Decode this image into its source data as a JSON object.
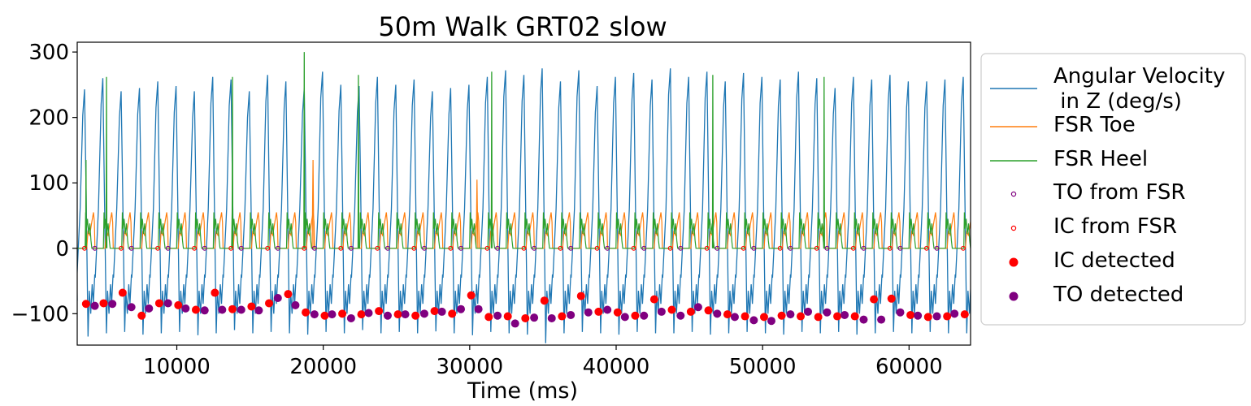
{
  "chart_data": {
    "type": "line",
    "title": "50m Walk GRT02 slow",
    "xlabel": "Time (ms)",
    "ylabel": "",
    "xlim": [
      3200,
      64200
    ],
    "ylim": [
      -148,
      315
    ],
    "x_ticks": [
      10000,
      20000,
      30000,
      40000,
      50000,
      60000
    ],
    "x_tick_labels": [
      "10000",
      "20000",
      "30000",
      "40000",
      "50000",
      "60000"
    ],
    "y_ticks": [
      -100,
      0,
      100,
      200,
      300
    ],
    "y_tick_labels": [
      "−100",
      "0",
      "100",
      "200",
      "300"
    ],
    "grid": false,
    "legend_position": "outside-right",
    "legend": [
      {
        "label": "Angular Velocity\n in Z (deg/s)",
        "marker": "line",
        "color": "#1f77b4"
      },
      {
        "label": "FSR Toe",
        "marker": "line",
        "color": "#ff7f0e"
      },
      {
        "label": "FSR Heel",
        "marker": "line",
        "color": "#2ca02c"
      },
      {
        "label": "TO from FSR",
        "marker": "open-circle",
        "color": "#800080"
      },
      {
        "label": "IC from FSR",
        "marker": "open-circle",
        "color": "#ff0000"
      },
      {
        "label": "IC detected",
        "marker": "filled-circle",
        "color": "#ff0000"
      },
      {
        "label": "TO detected",
        "marker": "filled-circle",
        "color": "#800080"
      }
    ],
    "series": [
      {
        "name": "Angular Velocity\n in Z (deg/s)",
        "color": "#1f77b4",
        "kind": "periodic-gait-signal",
        "step_period_ms": 1250,
        "first_peak_ms": 3700,
        "peak_values": [
          243,
          260,
          240,
          245,
          255,
          248,
          240,
          262,
          258,
          240,
          265,
          255,
          245,
          270,
          250,
          248,
          262,
          250,
          258,
          240,
          245,
          250,
          262,
          272,
          265,
          275,
          255,
          272,
          248,
          262,
          268,
          258,
          275,
          262,
          270,
          255,
          268,
          262,
          258,
          270,
          260,
          245,
          262,
          258,
          265,
          255,
          255,
          258,
          262
        ],
        "trough_values": [
          -135,
          -130,
          -128,
          -132,
          -130,
          -128,
          -133,
          -130,
          -125,
          -130,
          -128,
          -130,
          -132,
          -128,
          -130,
          -125,
          -130,
          -128,
          -130,
          -127,
          -130,
          -133,
          -128,
          -130,
          -132,
          -145,
          -130,
          -128,
          -130,
          -132,
          -128,
          -130,
          -130,
          -128,
          -132,
          -130,
          -128,
          -130,
          -132,
          -128,
          -130,
          -128,
          -132,
          -130,
          -128,
          -130,
          -128,
          -130,
          -130
        ]
      },
      {
        "name": "FSR Toe",
        "color": "#ff7f0e",
        "kind": "periodic-pressure-signal",
        "peak_value": 55,
        "high_spikes": [
          {
            "x": 19300,
            "y": 135
          },
          {
            "x": 30500,
            "y": 105
          }
        ]
      },
      {
        "name": "FSR Heel",
        "color": "#2ca02c",
        "kind": "periodic-pressure-signal",
        "peak_value": 55,
        "high_spikes": [
          {
            "x": 3800,
            "y": 135
          },
          {
            "x": 5200,
            "y": 262
          },
          {
            "x": 13800,
            "y": 262
          },
          {
            "x": 18700,
            "y": 300
          },
          {
            "x": 22400,
            "y": 265
          },
          {
            "x": 31500,
            "y": 270
          },
          {
            "x": 46600,
            "y": 265
          },
          {
            "x": 54200,
            "y": 262
          }
        ]
      }
    ],
    "points": {
      "TO from FSR": {
        "color": "#800080",
        "y": 0,
        "x_start": 4400,
        "x_step": 2500,
        "count": 24
      },
      "IC from FSR": {
        "color": "#ff0000",
        "y": 0,
        "x_start": 3700,
        "x_step": 2500,
        "count": 25
      },
      "IC detected": {
        "color": "#ff0000",
        "x": [
          3800,
          5000,
          6300,
          7600,
          8800,
          10100,
          11300,
          12600,
          13800,
          15100,
          16300,
          17600,
          18800,
          20100,
          21300,
          22600,
          23800,
          25100,
          26300,
          27600,
          28800,
          30100,
          31300,
          32600,
          33800,
          35100,
          36300,
          37600,
          38800,
          40100,
          41300,
          42600,
          43800,
          45100,
          46300,
          47600,
          48800,
          50100,
          51300,
          52600,
          53800,
          55100,
          56300,
          57600,
          58800,
          60100,
          61300,
          62600,
          63800
        ],
        "y": [
          -85,
          -84,
          -68,
          -103,
          -84,
          -87,
          -94,
          -68,
          -93,
          -89,
          -84,
          -70,
          -98,
          -103,
          -100,
          -101,
          -96,
          -101,
          -103,
          -96,
          -100,
          -72,
          -105,
          -104,
          -107,
          -80,
          -104,
          -73,
          -97,
          -98,
          -103,
          -78,
          -94,
          -97,
          -95,
          -101,
          -104,
          -105,
          -103,
          -104,
          -105,
          -104,
          -104,
          -78,
          -77,
          -102,
          -105,
          -104,
          -101
        ]
      },
      "TO detected": {
        "color": "#800080",
        "x": [
          4400,
          5600,
          6900,
          8100,
          9400,
          10600,
          11900,
          13100,
          14400,
          15600,
          16900,
          18100,
          19400,
          20600,
          21900,
          23100,
          24400,
          25600,
          26900,
          28100,
          29400,
          30600,
          31900,
          33100,
          34400,
          35600,
          36900,
          38100,
          39400,
          40600,
          41900,
          43100,
          44400,
          45600,
          46900,
          48100,
          49400,
          50600,
          51900,
          53100,
          54400,
          55600,
          56900,
          58100,
          59400,
          60600,
          61900,
          63100
        ],
        "y": [
          -88,
          -85,
          -90,
          -92,
          -84,
          -92,
          -95,
          -94,
          -94,
          -95,
          -76,
          -87,
          -101,
          -101,
          -107,
          -99,
          -103,
          -101,
          -100,
          -97,
          -93,
          -93,
          -103,
          -115,
          -106,
          -107,
          -102,
          -98,
          -94,
          -105,
          -103,
          -97,
          -103,
          -90,
          -100,
          -105,
          -110,
          -111,
          -101,
          -97,
          -98,
          -102,
          -109,
          -109,
          -98,
          -103,
          -104,
          -100
        ]
      }
    }
  }
}
